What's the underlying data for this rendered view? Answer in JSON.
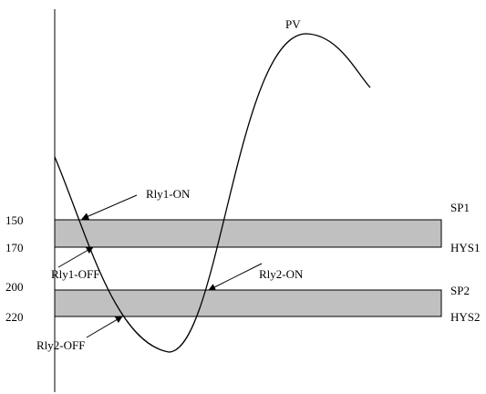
{
  "diagram": {
    "curve_label": "PV",
    "levels": [
      {
        "value": "150",
        "band_label": "SP1"
      },
      {
        "value": "170",
        "band_label": "HYS1"
      },
      {
        "value": "200",
        "band_label": "SP2"
      },
      {
        "value": "220",
        "band_label": "HYS2"
      }
    ],
    "annotations": [
      {
        "text": "Rly1-ON"
      },
      {
        "text": "Rly1-OFF"
      },
      {
        "text": "Rly2-ON"
      },
      {
        "text": "Rly2-OFF"
      }
    ],
    "colors": {
      "band_fill": "#c0c0c0",
      "line": "#000000",
      "background": "#ffffff"
    }
  }
}
